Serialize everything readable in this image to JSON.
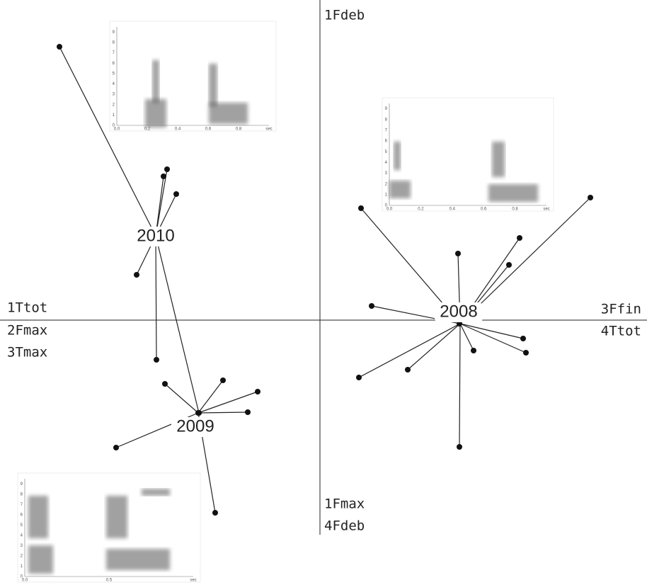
{
  "axes": {
    "top": [
      "1Fdeb"
    ],
    "bottom": [
      "1Fmax",
      "4Fdeb"
    ],
    "left": [
      "1Ttot",
      "2Fmax",
      "3Tmax"
    ],
    "right": [
      "3Ffin",
      "4Ttot"
    ]
  },
  "groups": [
    {
      "label": "2010"
    },
    {
      "label": "2009"
    },
    {
      "label": "2008"
    }
  ],
  "spectrograms": [
    {
      "yticks": [
        "0",
        "1",
        "2",
        "3",
        "4",
        "5",
        "6",
        "7",
        "8",
        "9"
      ],
      "xticks": [
        "0.0",
        "0.2",
        "0.4",
        "0.6",
        "0.8",
        "sec"
      ]
    },
    {
      "yticks": [
        "0",
        "1",
        "2",
        "3",
        "4",
        "5",
        "6",
        "7",
        "8",
        "9"
      ],
      "xticks": [
        "0.0",
        "0.2",
        "0.4",
        "0.6",
        "0.8",
        "sec"
      ]
    },
    {
      "yticks": [
        "0",
        "1",
        "2",
        "3",
        "4",
        "5",
        "6",
        "7",
        "8",
        "9"
      ],
      "xticks": [
        "0.0",
        "0.5",
        "sec"
      ]
    }
  ]
}
